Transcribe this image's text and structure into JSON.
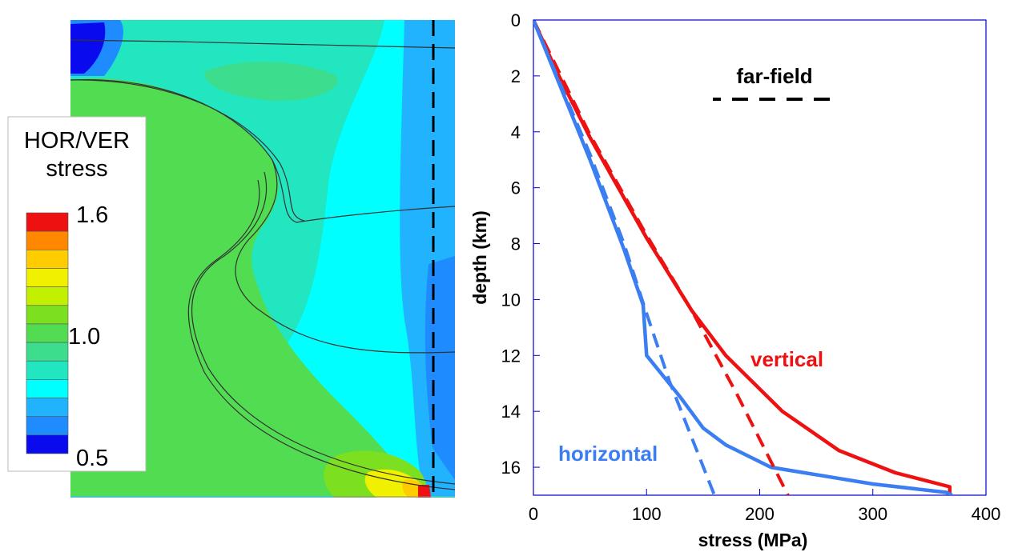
{
  "colors": {
    "vertical": "#ee1111",
    "horizontal": "#3b7ef2",
    "frame": "#0000cc",
    "scale": [
      "#0a0aee",
      "#1e8cff",
      "#22b3ff",
      "#00ffff",
      "#22e6c0",
      "#3cdd8c",
      "#52dc52",
      "#7cdf20",
      "#c2f000",
      "#f0f000",
      "#ffcc00",
      "#ff8800",
      "#ee1111"
    ]
  },
  "left_panel": {
    "legend_title_line1": "HOR/VER",
    "legend_title_line2": "stress",
    "scale_max": "1.6",
    "scale_mid": "1.0",
    "scale_min": "0.5"
  },
  "chart_data": {
    "type": "line",
    "xlabel": "stress (MPa)",
    "ylabel": "depth (km)",
    "xlim": [
      0,
      400
    ],
    "ylim": [
      0,
      17
    ],
    "y_inverted": true,
    "x_ticks": [
      "0",
      "100",
      "200",
      "300",
      "400"
    ],
    "y_ticks": [
      "0",
      "2",
      "4",
      "6",
      "8",
      "10",
      "12",
      "14",
      "16"
    ],
    "legend": {
      "label": "far-field",
      "placement": "top-right"
    },
    "annotations": [
      "vertical",
      "horizontal"
    ],
    "series": [
      {
        "name": "vertical",
        "style": "solid",
        "color": "#ee1111",
        "x": [
          0,
          20,
          50,
          100,
          140,
          170,
          220,
          270,
          320,
          368,
          368
        ],
        "y": [
          0,
          1.8,
          4.2,
          7.8,
          10.4,
          12.0,
          14.0,
          15.4,
          16.2,
          16.7,
          17.0
        ]
      },
      {
        "name": "horizontal",
        "style": "solid",
        "color": "#3b7ef2",
        "x": [
          0,
          20,
          50,
          80,
          97,
          100,
          130,
          150,
          170,
          210,
          300,
          365,
          370
        ],
        "y": [
          0,
          2.0,
          5.0,
          8.2,
          10.2,
          12.0,
          13.5,
          14.6,
          15.2,
          16.0,
          16.6,
          16.9,
          17.0
        ]
      },
      {
        "name": "vertical (far-field)",
        "style": "dashed",
        "color": "#ee1111",
        "x": [
          0,
          50,
          100,
          140,
          180,
          225
        ],
        "y": [
          0,
          4.1,
          7.7,
          10.4,
          13.4,
          17.0
        ]
      },
      {
        "name": "horizontal (far-field)",
        "style": "dashed",
        "color": "#3b7ef2",
        "x": [
          0,
          50,
          80,
          100,
          120,
          160
        ],
        "y": [
          0,
          4.8,
          8.0,
          10.5,
          12.9,
          17.0
        ]
      }
    ]
  }
}
